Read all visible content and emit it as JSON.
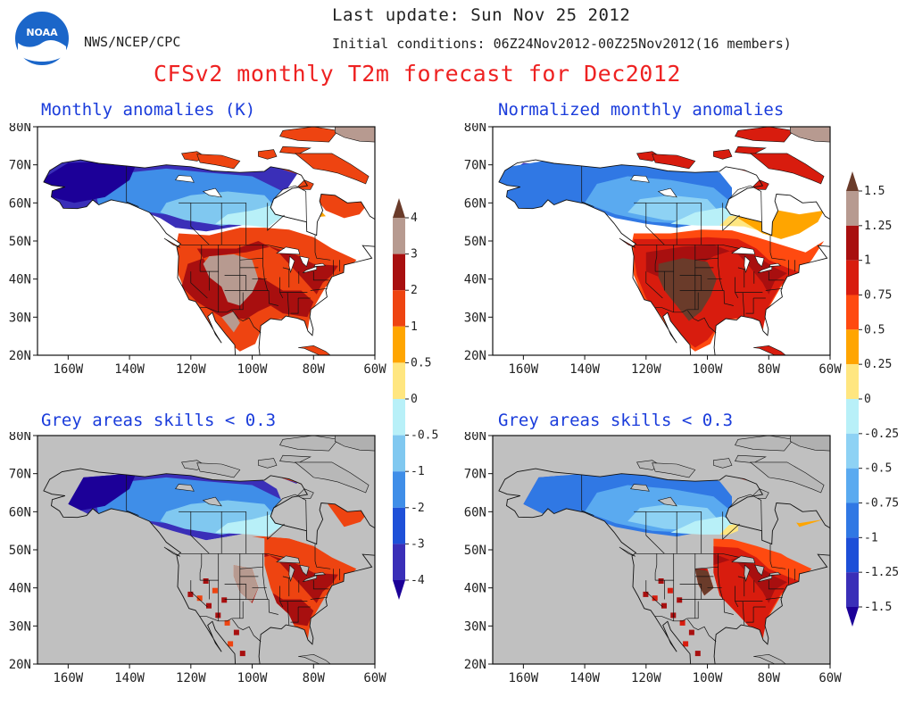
{
  "header": {
    "last_update": "Last update: Sun Nov 25 2012",
    "initial_conditions": "Initial conditions: 06Z24Nov2012-00Z25Nov2012(16 members)",
    "agency": "NWS/NCEP/CPC",
    "logo_text": "NOAA",
    "main_title": "CFSv2 monthly T2m forecast for Dec2012"
  },
  "panels": [
    {
      "title": "Monthly anomalies (K)",
      "key": "abs",
      "grey": false
    },
    {
      "title": "Normalized monthly anomalies",
      "key": "norm",
      "grey": false
    },
    {
      "title": "Grey areas skills < 0.3",
      "key": "abs",
      "grey": true
    },
    {
      "title": "Grey areas skills < 0.3",
      "key": "norm",
      "grey": true
    }
  ],
  "axes": {
    "lat_labels": [
      "80N",
      "70N",
      "60N",
      "50N",
      "40N",
      "30N",
      "20N"
    ],
    "lon_labels": [
      "160W",
      "140W",
      "120W",
      "100W",
      "80W",
      "60W"
    ]
  },
  "colorbars": {
    "abs": {
      "labels": [
        "4",
        "3",
        "2",
        "1",
        "0.5",
        "0",
        "-0.5",
        "-1",
        "-2",
        "-3",
        "-4"
      ]
    },
    "norm": {
      "labels": [
        "1.5",
        "1.25",
        "1",
        "0.75",
        "0.5",
        "0.25",
        "0",
        "-0.25",
        "-0.5",
        "-0.75",
        "-1",
        "-1.25",
        "-1.5"
      ]
    }
  },
  "colors": {
    "title_red": "#ee2222",
    "panel_title_blue": "#1a3cdb",
    "grey_mask": "#c0c0c0",
    "scale_abs": [
      "#6a3b2a",
      "#b79a90",
      "#a80f0f",
      "#ee4411",
      "#ffa500",
      "#ffe680",
      "#b8f0f8",
      "#80c8f0",
      "#3f8ee8",
      "#1e50d8",
      "#3a2fb8",
      "#1c0098"
    ],
    "scale_norm": [
      "#6a3b2a",
      "#b79a90",
      "#a80f0f",
      "#d81c0e",
      "#ff4a10",
      "#ffa500",
      "#ffe680",
      "#b8f0f8",
      "#8ed2f4",
      "#5aaaf0",
      "#3078e4",
      "#1d4fd8",
      "#3a2fb8",
      "#1c0098"
    ]
  }
}
